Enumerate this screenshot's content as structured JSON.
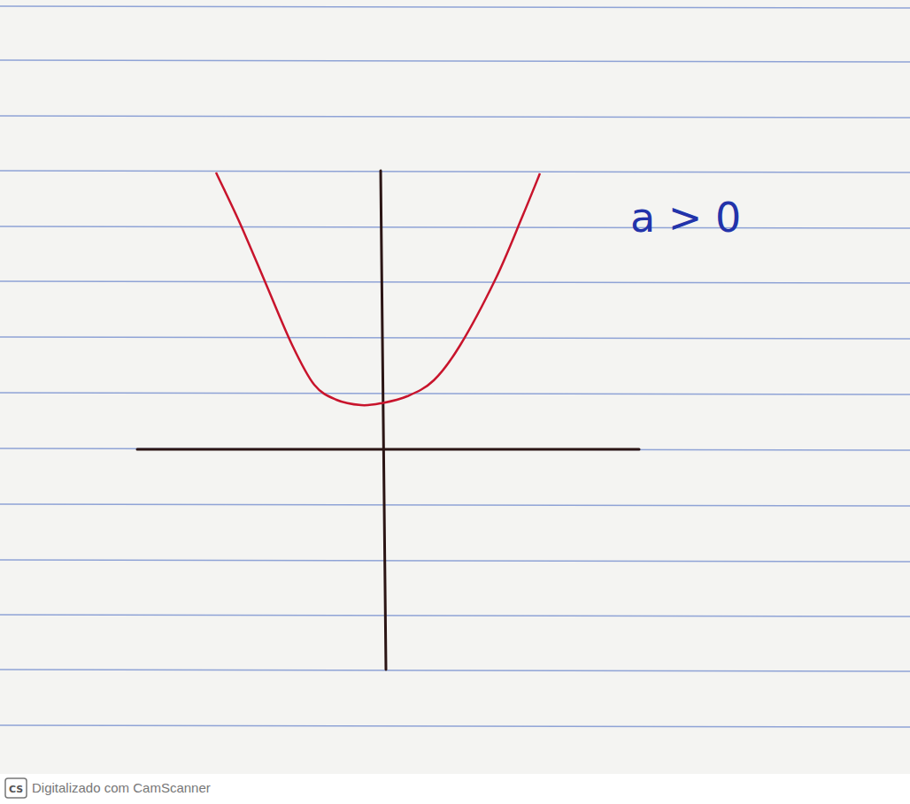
{
  "chart_data": {
    "type": "line",
    "annotations": [
      "a > 0"
    ],
    "x": [
      -1.86,
      -1.6,
      -1.3,
      -1.0,
      -0.75,
      -0.5,
      -0.22,
      0,
      0.3,
      0.6,
      0.9,
      1.3,
      1.6,
      1.8
    ],
    "values": [
      3.13,
      2.58,
      1.88,
      1.18,
      0.73,
      0.56,
      0.5,
      0.52,
      0.6,
      0.78,
      1.18,
      1.93,
      2.63,
      3.12
    ],
    "color": "#c8142c",
    "xlim": [
      -2.75,
      2.92
    ],
    "ylim": [
      -2.49,
      3.15
    ],
    "tick_labels": false,
    "grid": false
  },
  "footer": {
    "logo": "CS",
    "text": "Digitalizado com CamScanner"
  }
}
